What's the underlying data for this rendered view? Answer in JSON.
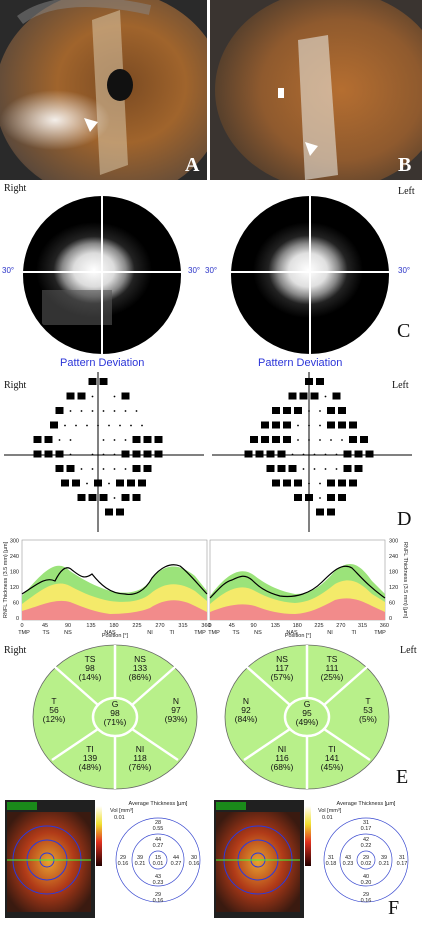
{
  "panels": {
    "A": "A",
    "B": "B",
    "C": "C",
    "D": "D",
    "E": "E",
    "F": "F"
  },
  "visual_field": {
    "left_label": "Right",
    "right_label": "Left",
    "degree_label": "30°"
  },
  "pattern_deviation": {
    "title": "Pattern Deviation",
    "left_label": "Right",
    "right_label": "Left"
  },
  "rnfl": {
    "ylabel": "RNFL Thickness (3.5 mm) [µm]",
    "xlabel": "Position [°]",
    "y_ticks": [
      "0",
      "60",
      "120",
      "180",
      "240",
      "300"
    ],
    "x_ticks": [
      "0",
      "45",
      "90",
      "135",
      "180",
      "225",
      "270",
      "315",
      "360"
    ],
    "right_regions": [
      "TMP",
      "TS",
      "NS",
      "NAS",
      "NI",
      "TI",
      "TMP"
    ],
    "left_regions": [
      "TMP",
      "TS",
      "NS",
      "NAS",
      "NI",
      "TI",
      "TMP"
    ]
  },
  "sectors_right": {
    "label": "Right",
    "TS": {
      "name": "TS",
      "value": "98",
      "pct": "(14%)"
    },
    "NS": {
      "name": "NS",
      "value": "133",
      "pct": "(86%)"
    },
    "T": {
      "name": "T",
      "value": "56",
      "pct": "(12%)"
    },
    "G": {
      "name": "G",
      "value": "98",
      "pct": "(71%)"
    },
    "N": {
      "name": "N",
      "value": "97",
      "pct": "(93%)"
    },
    "TI": {
      "name": "TI",
      "value": "139",
      "pct": "(48%)"
    },
    "NI": {
      "name": "NI",
      "value": "118",
      "pct": "(76%)"
    }
  },
  "sectors_left": {
    "label": "Left",
    "NS": {
      "name": "NS",
      "value": "117",
      "pct": "(57%)"
    },
    "TS": {
      "name": "TS",
      "value": "111",
      "pct": "(25%)"
    },
    "N": {
      "name": "N",
      "value": "92",
      "pct": "(84%)"
    },
    "G": {
      "name": "G",
      "value": "95",
      "pct": "(49%)"
    },
    "T": {
      "name": "T",
      "value": "53",
      "pct": "(5%)"
    },
    "NI": {
      "name": "NI",
      "value": "116",
      "pct": "(68%)"
    },
    "TI": {
      "name": "TI",
      "value": "141",
      "pct": "(45%)"
    }
  },
  "macula": {
    "title": "Average Thickness [µm]",
    "vol_label": "Vol [mm³]",
    "right": {
      "top": [
        "28",
        "0.55"
      ],
      "inner_top": [
        "44",
        "0.27"
      ],
      "left": [
        "29",
        "0.16"
      ],
      "inner_left": [
        "39",
        "0.21"
      ],
      "center": [
        "15",
        "0.01"
      ],
      "inner_right": [
        "44",
        "0.27"
      ],
      "right": [
        "30",
        "0.16"
      ],
      "inner_bottom": [
        "43",
        "0.23"
      ],
      "bottom": [
        "29",
        "0.16"
      ],
      "tl_vol": "0.01"
    },
    "left": {
      "top": [
        "31",
        "0.17"
      ],
      "inner_top": [
        "42",
        "0.22"
      ],
      "left": [
        "31",
        "0.18"
      ],
      "inner_left": [
        "43",
        "0.23"
      ],
      "center": [
        "29",
        "0.02"
      ],
      "inner_right": [
        "39",
        "0.21"
      ],
      "right": [
        "31",
        "0.17"
      ],
      "inner_bottom": [
        "40",
        "0.20"
      ],
      "bottom": [
        "29",
        "0.16"
      ],
      "tl_vol": "0.01"
    }
  }
}
